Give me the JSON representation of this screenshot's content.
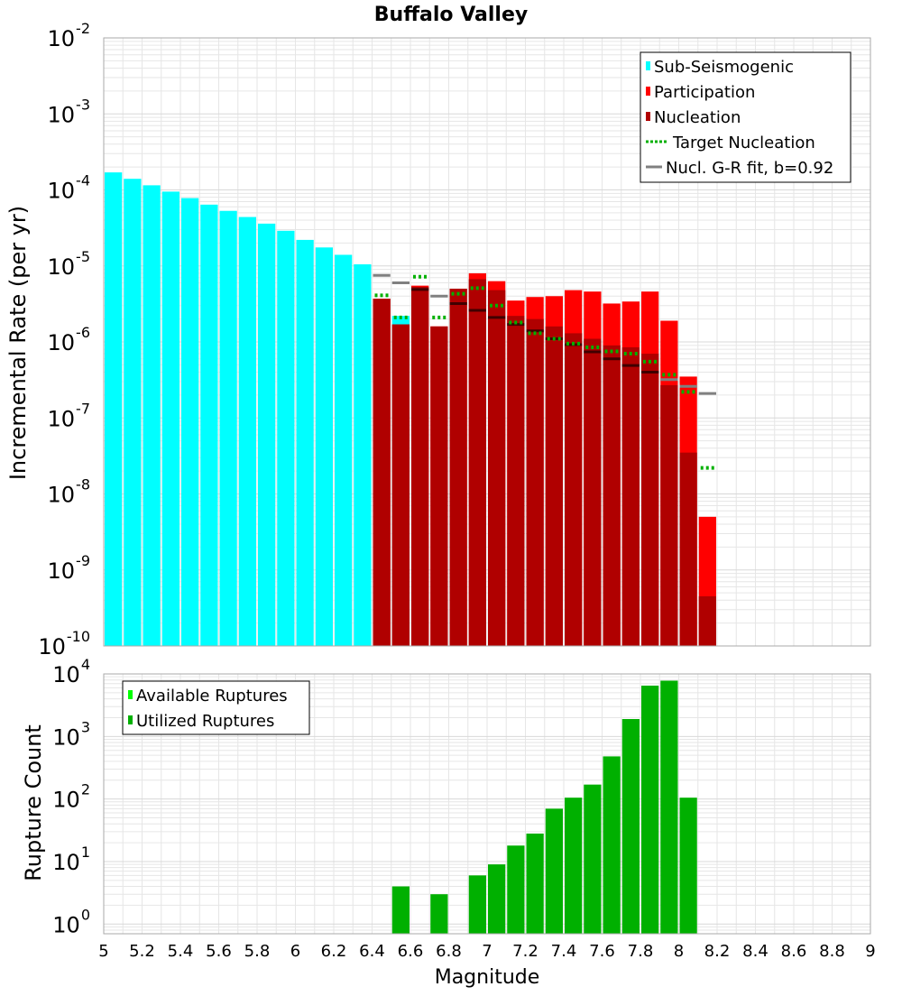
{
  "title": "Buffalo Valley",
  "xlabel": "Magnitude",
  "colors": {
    "sub_seismogenic": "#00ffff",
    "participation": "#ff0000",
    "nucleation": "#b00000",
    "target": "#00b000",
    "gr_fit": "#808080",
    "available": "#00ff00",
    "utilized": "#00b000"
  },
  "chart_data": [
    {
      "type": "bar",
      "name": "rates",
      "ylabel": "Incremental Rate (per yr)",
      "yscale": "log",
      "xlim": [
        5,
        9
      ],
      "ylim": [
        1e-10,
        0.01
      ],
      "ytick_exponents": [
        "-10",
        "-9",
        "-8",
        "-7",
        "-6",
        "-5",
        "-4",
        "-3",
        "-2"
      ],
      "legend": [
        {
          "label": "Sub-Seismogenic",
          "kind": "box",
          "color": "#00ffff"
        },
        {
          "label": "Participation",
          "kind": "box",
          "color": "#ff0000"
        },
        {
          "label": "Nucleation",
          "kind": "box",
          "color": "#b00000"
        },
        {
          "label": "Target Nucleation",
          "kind": "dots",
          "color": "#00b000"
        },
        {
          "label": "Nucl. G-R fit, b=0.92",
          "kind": "line",
          "color": "#808080"
        }
      ],
      "bin_width": 0.1,
      "sub_seismogenic": {
        "x": [
          5.05,
          5.15,
          5.25,
          5.35,
          5.45,
          5.55,
          5.65,
          5.75,
          5.85,
          5.95,
          6.05,
          6.15,
          6.25,
          6.35,
          6.55
        ],
        "values": [
          0.00017,
          0.00014,
          0.000115,
          9.5e-05,
          7.8e-05,
          6.4e-05,
          5.3e-05,
          4.4e-05,
          3.6e-05,
          2.9e-05,
          2.2e-05,
          1.75e-05,
          1.4e-05,
          1.05e-05,
          2.2e-06
        ]
      },
      "participation": {
        "x": [
          6.45,
          6.55,
          6.65,
          6.75,
          6.85,
          6.95,
          7.05,
          7.15,
          7.25,
          7.35,
          7.45,
          7.55,
          7.65,
          7.75,
          7.85,
          7.95,
          8.05,
          8.15
        ],
        "values": [
          3.7e-06,
          1.7e-06,
          5.5e-06,
          1.6e-06,
          5e-06,
          8e-06,
          6.3e-06,
          3.5e-06,
          3.9e-06,
          4e-06,
          4.8e-06,
          4.6e-06,
          3.2e-06,
          3.4e-06,
          4.6e-06,
          1.9e-06,
          3.5e-07,
          5e-09
        ]
      },
      "nucleation": {
        "x": [
          6.45,
          6.55,
          6.65,
          6.75,
          6.85,
          6.95,
          7.05,
          7.15,
          7.25,
          7.35,
          7.45,
          7.55,
          7.65,
          7.75,
          7.85,
          7.95,
          8.05,
          8.15
        ],
        "values": [
          3.7e-06,
          1.7e-06,
          5.3e-06,
          1.6e-06,
          5e-06,
          6.7e-06,
          4.8e-06,
          2.2e-06,
          2e-06,
          1.6e-06,
          1.3e-06,
          1.1e-06,
          9e-07,
          8.5e-07,
          7e-07,
          2.7e-07,
          3.5e-08,
          4.5e-10
        ]
      },
      "target_nucleation": {
        "x": [
          6.45,
          6.55,
          6.65,
          6.75,
          6.85,
          6.95,
          7.05,
          7.15,
          7.25,
          7.35,
          7.45,
          7.55,
          7.65,
          7.75,
          7.85,
          7.95,
          8.05,
          8.15
        ],
        "values": [
          4.1e-06,
          2.1e-06,
          7.2e-06,
          2.1e-06,
          4.3e-06,
          5.1e-06,
          3e-06,
          1.8e-06,
          1.3e-06,
          1.1e-06,
          9.5e-07,
          8.5e-07,
          7.5e-07,
          7e-07,
          5.5e-07,
          3.7e-07,
          2.2e-07,
          2.2e-08
        ]
      },
      "gr_fit": {
        "x": [
          6.45,
          6.55,
          6.65,
          6.75,
          6.85,
          6.95,
          7.05,
          7.15,
          7.25,
          7.35,
          7.45,
          7.55,
          7.65,
          7.75,
          7.85,
          7.95,
          8.05,
          8.15
        ],
        "values": [
          7.5e-06,
          6e-06,
          4.9e-06,
          4e-06,
          3.2e-06,
          2.6e-06,
          2.1e-06,
          1.7e-06,
          1.4e-06,
          1.1e-06,
          9.2e-07,
          7.4e-07,
          6e-07,
          4.9e-07,
          4e-07,
          3.2e-07,
          2.6e-07,
          2.1e-07
        ]
      }
    },
    {
      "type": "bar",
      "name": "rupture_counts",
      "ylabel": "Rupture Count",
      "yscale": "log",
      "xlim": [
        5,
        9
      ],
      "ylim": [
        0.7,
        10000
      ],
      "ytick_exponents": [
        "0",
        "1",
        "2",
        "3",
        "4"
      ],
      "xticks": [
        "5",
        "5.2",
        "5.4",
        "5.6",
        "5.8",
        "6",
        "6.2",
        "6.4",
        "6.6",
        "6.8",
        "7",
        "7.2",
        "7.4",
        "7.6",
        "7.8",
        "8",
        "8.2",
        "8.4",
        "8.6",
        "8.8",
        "9"
      ],
      "legend": [
        {
          "label": "Available Ruptures",
          "kind": "box",
          "color": "#00ff00"
        },
        {
          "label": "Utilized Ruptures",
          "kind": "box",
          "color": "#00b000"
        }
      ],
      "bin_width": 0.1,
      "utilized": {
        "x": [
          6.55,
          6.75,
          6.95,
          7.05,
          7.15,
          7.25,
          7.35,
          7.45,
          7.55,
          7.65,
          7.75,
          7.85,
          7.95,
          8.05
        ],
        "values": [
          4,
          3,
          6,
          9,
          18,
          28,
          70,
          105,
          170,
          480,
          1900,
          6500,
          7800,
          105
        ]
      }
    }
  ]
}
